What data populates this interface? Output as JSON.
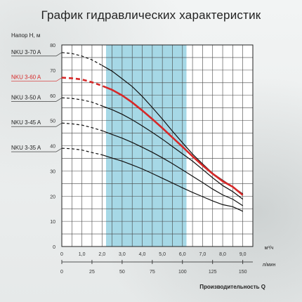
{
  "page": {
    "title": "График гидравлических характеристик"
  },
  "chart_data": {
    "type": "line",
    "ylabel": "Напор H, м",
    "xlabel": "Производительность Q",
    "x_unit": "м³/ч",
    "x2_unit": "л/мин",
    "xlim": [
      0,
      9.5
    ],
    "ylim": [
      0,
      80
    ],
    "x_ticks": [
      {
        "v": 0,
        "label": "0"
      },
      {
        "v": 1,
        "label": "1,0"
      },
      {
        "v": 2,
        "label": "2,0"
      },
      {
        "v": 3,
        "label": "3,0"
      },
      {
        "v": 4,
        "label": "4,0"
      },
      {
        "v": 5,
        "label": "5,0"
      },
      {
        "v": 6,
        "label": "6,0"
      },
      {
        "v": 7,
        "label": "7,0"
      },
      {
        "v": 8,
        "label": "8,0"
      },
      {
        "v": 9,
        "label": "9,0"
      }
    ],
    "x2_ticks": [
      {
        "v": 0,
        "label": "0"
      },
      {
        "v": 1.5,
        "label": "25"
      },
      {
        "v": 3,
        "label": "50"
      },
      {
        "v": 4.5,
        "label": "75"
      },
      {
        "v": 6,
        "label": "100"
      },
      {
        "v": 7.5,
        "label": "125"
      },
      {
        "v": 9,
        "label": "150"
      }
    ],
    "y_ticks": [
      0,
      10,
      20,
      30,
      40,
      50,
      60,
      70,
      80
    ],
    "highlight_range": [
      2.2,
      6.2
    ],
    "highlight_color": "#a6d8e6",
    "series": [
      {
        "name": "NKU 3-70 A",
        "color": "#111111",
        "highlight": false,
        "dashed_until": 2.0,
        "points": [
          [
            0,
            77
          ],
          [
            0.5,
            76.6
          ],
          [
            1,
            75.6
          ],
          [
            1.5,
            74.1
          ],
          [
            2,
            71.9
          ],
          [
            2.5,
            69.6
          ],
          [
            3,
            66.6
          ],
          [
            3.5,
            63.5
          ],
          [
            4,
            59.6
          ],
          [
            4.5,
            55.2
          ],
          [
            5,
            50.6
          ],
          [
            5.5,
            45.8
          ],
          [
            6,
            41.2
          ],
          [
            6.5,
            36.7
          ],
          [
            7,
            32.8
          ],
          [
            7.5,
            29.1
          ],
          [
            8,
            26.3
          ],
          [
            8.5,
            23.7
          ],
          [
            9,
            20.9
          ]
        ]
      },
      {
        "name": "NKU 3-60 A",
        "color": "#d62828",
        "highlight": true,
        "dashed_until": 2.2,
        "points": [
          [
            0,
            67
          ],
          [
            0.5,
            66.8
          ],
          [
            1,
            66.3
          ],
          [
            1.5,
            65.2
          ],
          [
            2,
            63.8
          ],
          [
            2.5,
            62.2
          ],
          [
            3,
            60.0
          ],
          [
            3.5,
            57.2
          ],
          [
            4,
            54.0
          ],
          [
            4.5,
            50.6
          ],
          [
            5,
            47.0
          ],
          [
            5.5,
            43.3
          ],
          [
            6,
            39.6
          ],
          [
            6.5,
            35.8
          ],
          [
            7,
            32.2
          ],
          [
            7.5,
            28.9
          ],
          [
            8,
            25.9
          ],
          [
            8.5,
            23.7
          ],
          [
            9,
            20.4
          ]
        ]
      },
      {
        "name": "NKU 3-50 A",
        "color": "#111111",
        "highlight": false,
        "dashed_until": 2.0,
        "points": [
          [
            0,
            59
          ],
          [
            0.5,
            58.8
          ],
          [
            1,
            58.2
          ],
          [
            1.5,
            57.3
          ],
          [
            2,
            55.8
          ],
          [
            2.5,
            54.3
          ],
          [
            3,
            52.5
          ],
          [
            3.5,
            50.3
          ],
          [
            4,
            47.9
          ],
          [
            4.5,
            45.3
          ],
          [
            5,
            42.6
          ],
          [
            5.5,
            39.7
          ],
          [
            6,
            36.8
          ],
          [
            6.5,
            33.9
          ],
          [
            7,
            30.6
          ],
          [
            7.5,
            27.3
          ],
          [
            8,
            24.2
          ],
          [
            8.5,
            21.8
          ],
          [
            9,
            18.8
          ]
        ]
      },
      {
        "name": "NKU 3-45 A",
        "color": "#111111",
        "highlight": false,
        "dashed_until": 2.0,
        "points": [
          [
            0,
            49
          ],
          [
            0.5,
            48.7
          ],
          [
            1,
            48.2
          ],
          [
            1.5,
            47.2
          ],
          [
            2,
            46.0
          ],
          [
            2.5,
            44.5
          ],
          [
            3,
            43.0
          ],
          [
            3.5,
            41.3
          ],
          [
            4,
            39.4
          ],
          [
            4.5,
            37.4
          ],
          [
            5,
            35.2
          ],
          [
            5.5,
            32.9
          ],
          [
            6,
            30.4
          ],
          [
            6.5,
            27.9
          ],
          [
            7,
            25.4
          ],
          [
            7.5,
            22.8
          ],
          [
            8,
            20.5
          ],
          [
            8.5,
            18.8
          ],
          [
            9,
            16.2
          ]
        ]
      },
      {
        "name": "NKU 3-35 A",
        "color": "#111111",
        "highlight": false,
        "dashed_until": 2.0,
        "points": [
          [
            0,
            39
          ],
          [
            0.5,
            38.8
          ],
          [
            1,
            38.3
          ],
          [
            1.5,
            37.3
          ],
          [
            2,
            36.4
          ],
          [
            2.5,
            35.1
          ],
          [
            3,
            33.9
          ],
          [
            3.5,
            32.4
          ],
          [
            4,
            30.8
          ],
          [
            4.5,
            29.0
          ],
          [
            5,
            27.1
          ],
          [
            5.5,
            25.2
          ],
          [
            6,
            23.3
          ],
          [
            6.5,
            21.5
          ],
          [
            7,
            19.8
          ],
          [
            7.5,
            18.1
          ],
          [
            8,
            16.6
          ],
          [
            8.5,
            15.8
          ],
          [
            9,
            14.0
          ]
        ]
      }
    ]
  }
}
